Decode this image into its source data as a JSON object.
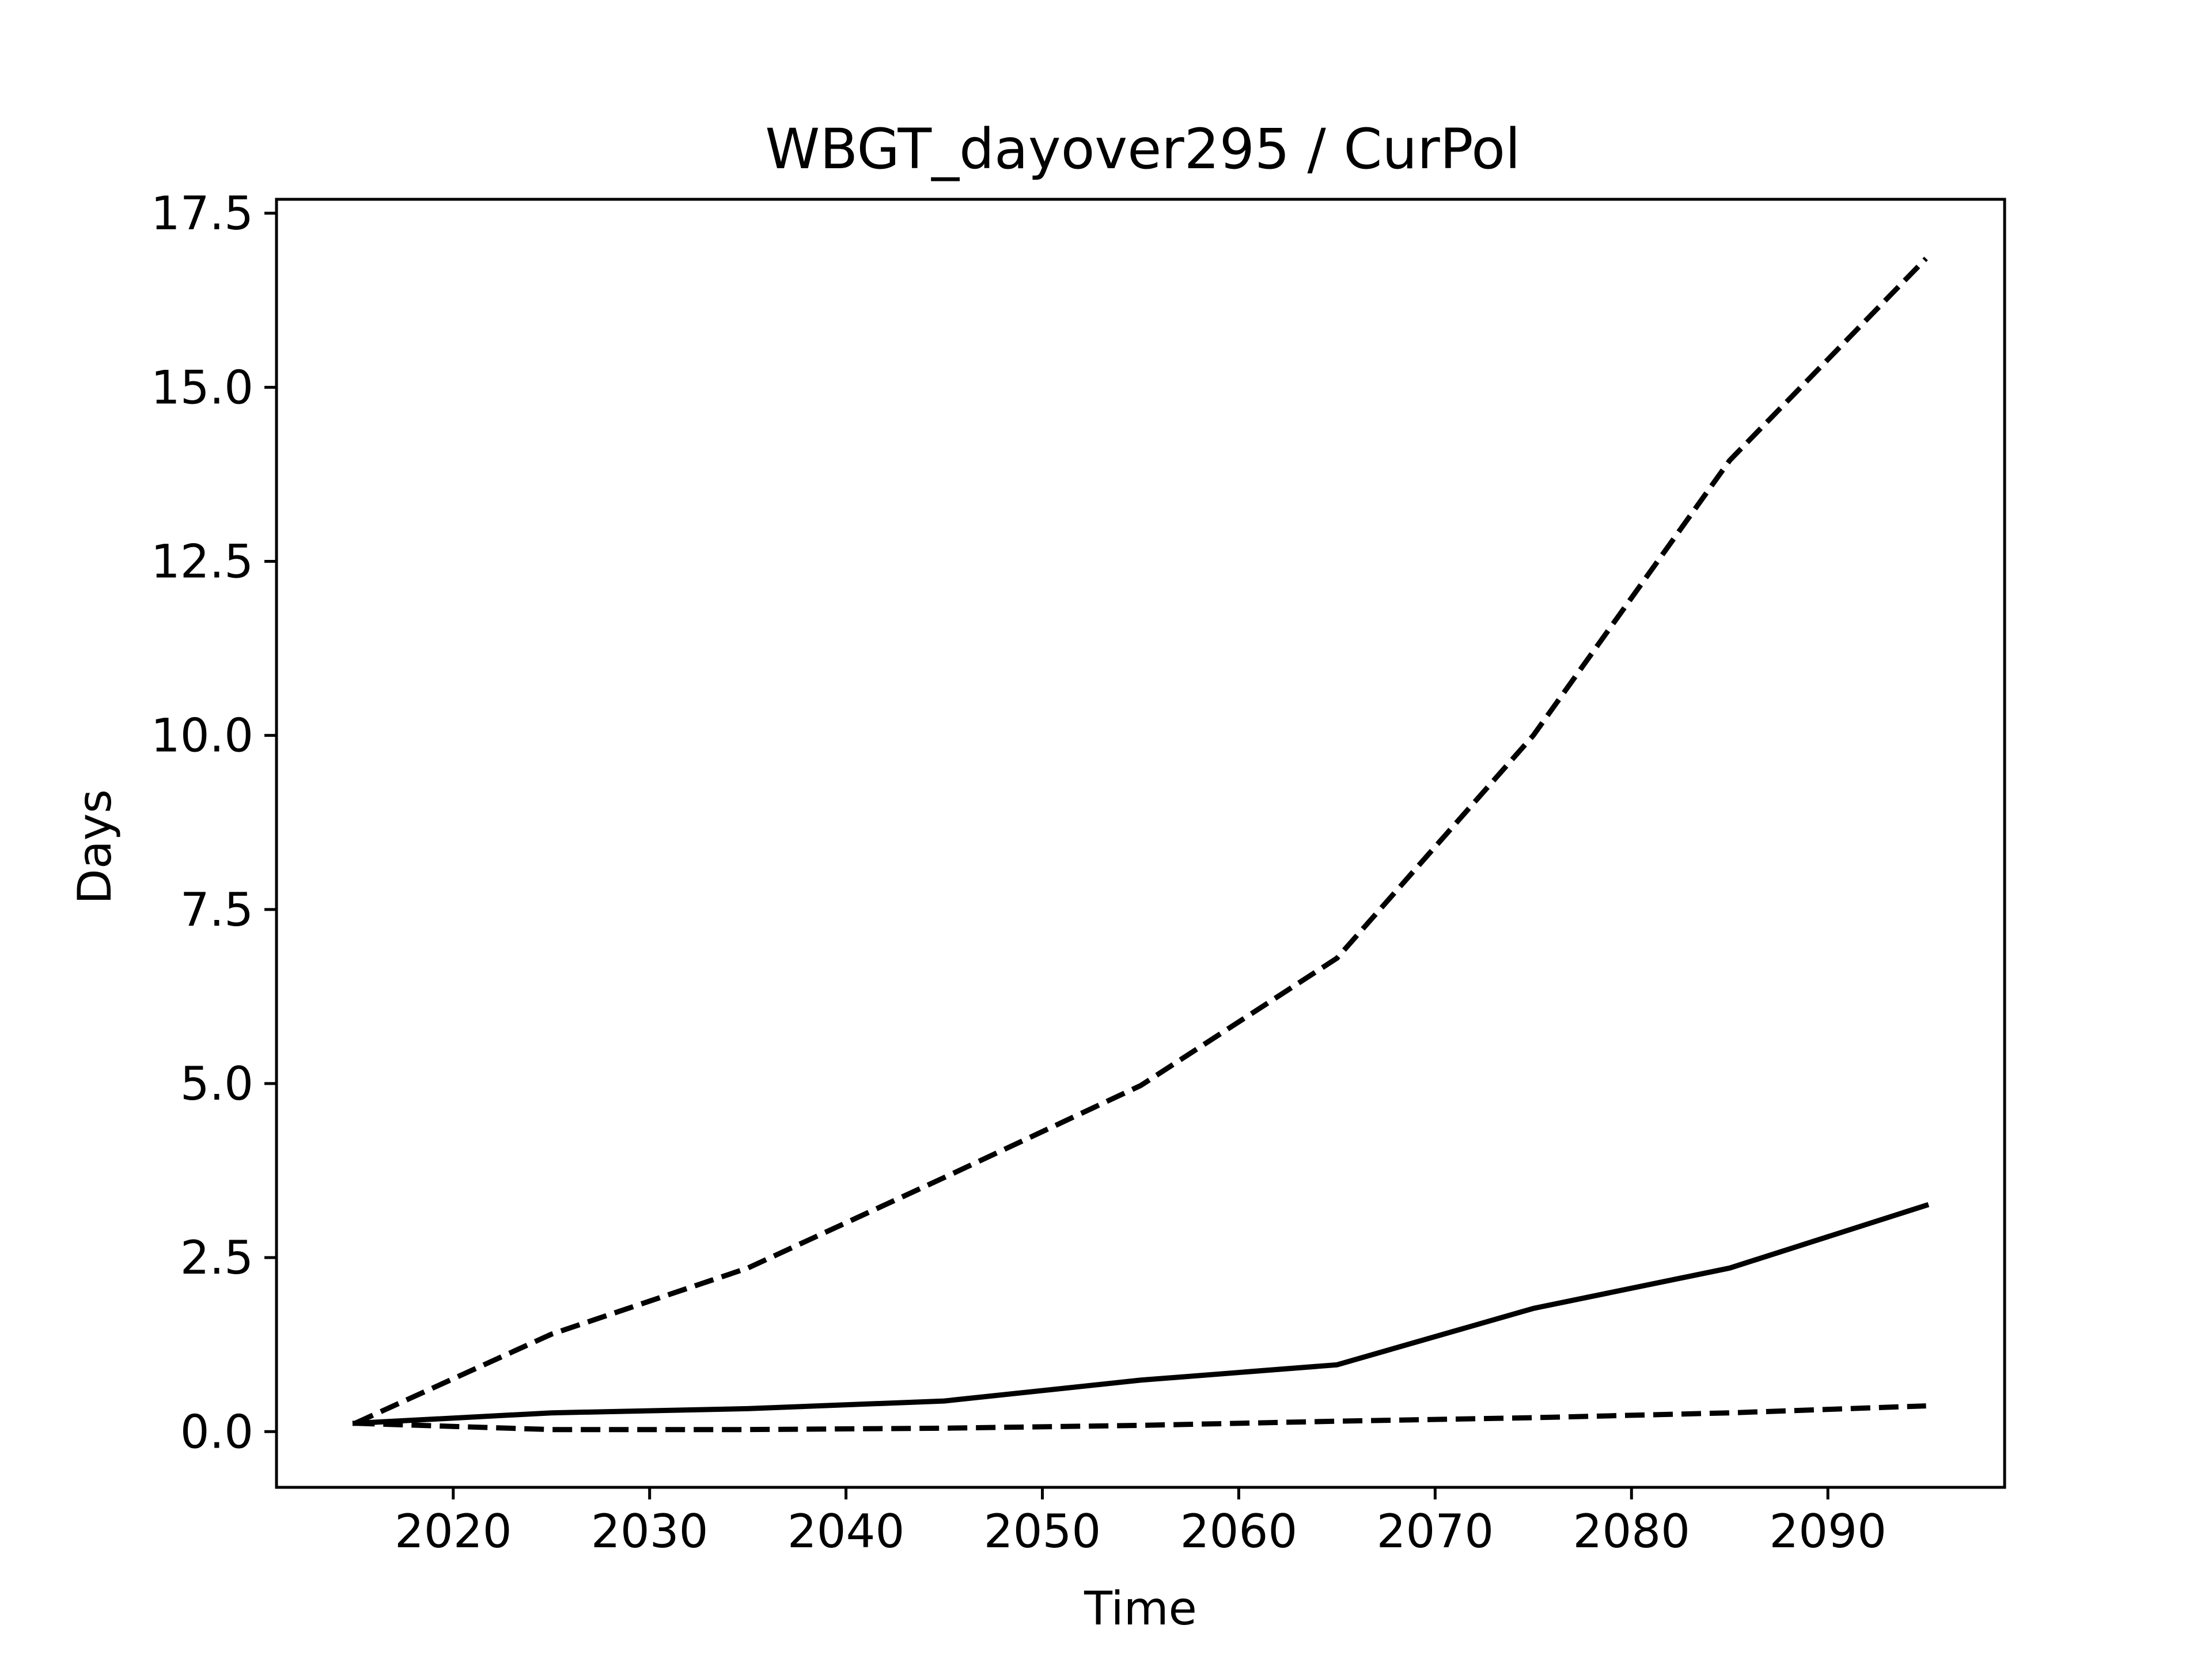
{
  "chart_data": {
    "type": "line",
    "title": "WBGT_dayover295 / CurPol",
    "xlabel": "Time",
    "ylabel": "Days",
    "xlim": [
      2011,
      2099
    ],
    "ylim": [
      -0.8,
      17.7
    ],
    "x_ticks": [
      2020,
      2030,
      2040,
      2050,
      2060,
      2070,
      2080,
      2090
    ],
    "x_tick_labels": [
      "2020",
      "2030",
      "2040",
      "2050",
      "2060",
      "2070",
      "2080",
      "2090"
    ],
    "y_ticks": [
      0.0,
      2.5,
      5.0,
      7.5,
      10.0,
      12.5,
      15.0,
      17.5
    ],
    "y_tick_labels": [
      "0.0",
      "2.5",
      "5.0",
      "7.5",
      "10.0",
      "12.5",
      "15.0",
      "17.5"
    ],
    "grid": false,
    "x": [
      2015,
      2025,
      2035,
      2045,
      2055,
      2065,
      2075,
      2085,
      2095
    ],
    "series": [
      {
        "style": "solid",
        "color": "#000000",
        "values": [
          0.12,
          0.27,
          0.33,
          0.44,
          0.74,
          0.96,
          1.77,
          2.35,
          3.25
        ]
      },
      {
        "style": "dashed",
        "color": "#000000",
        "values": [
          0.12,
          1.4,
          2.35,
          3.65,
          4.97,
          6.8,
          10.0,
          13.95,
          16.85
        ]
      },
      {
        "style": "dashed",
        "color": "#000000",
        "values": [
          0.12,
          0.03,
          0.03,
          0.05,
          0.09,
          0.15,
          0.2,
          0.27,
          0.37
        ]
      }
    ]
  }
}
